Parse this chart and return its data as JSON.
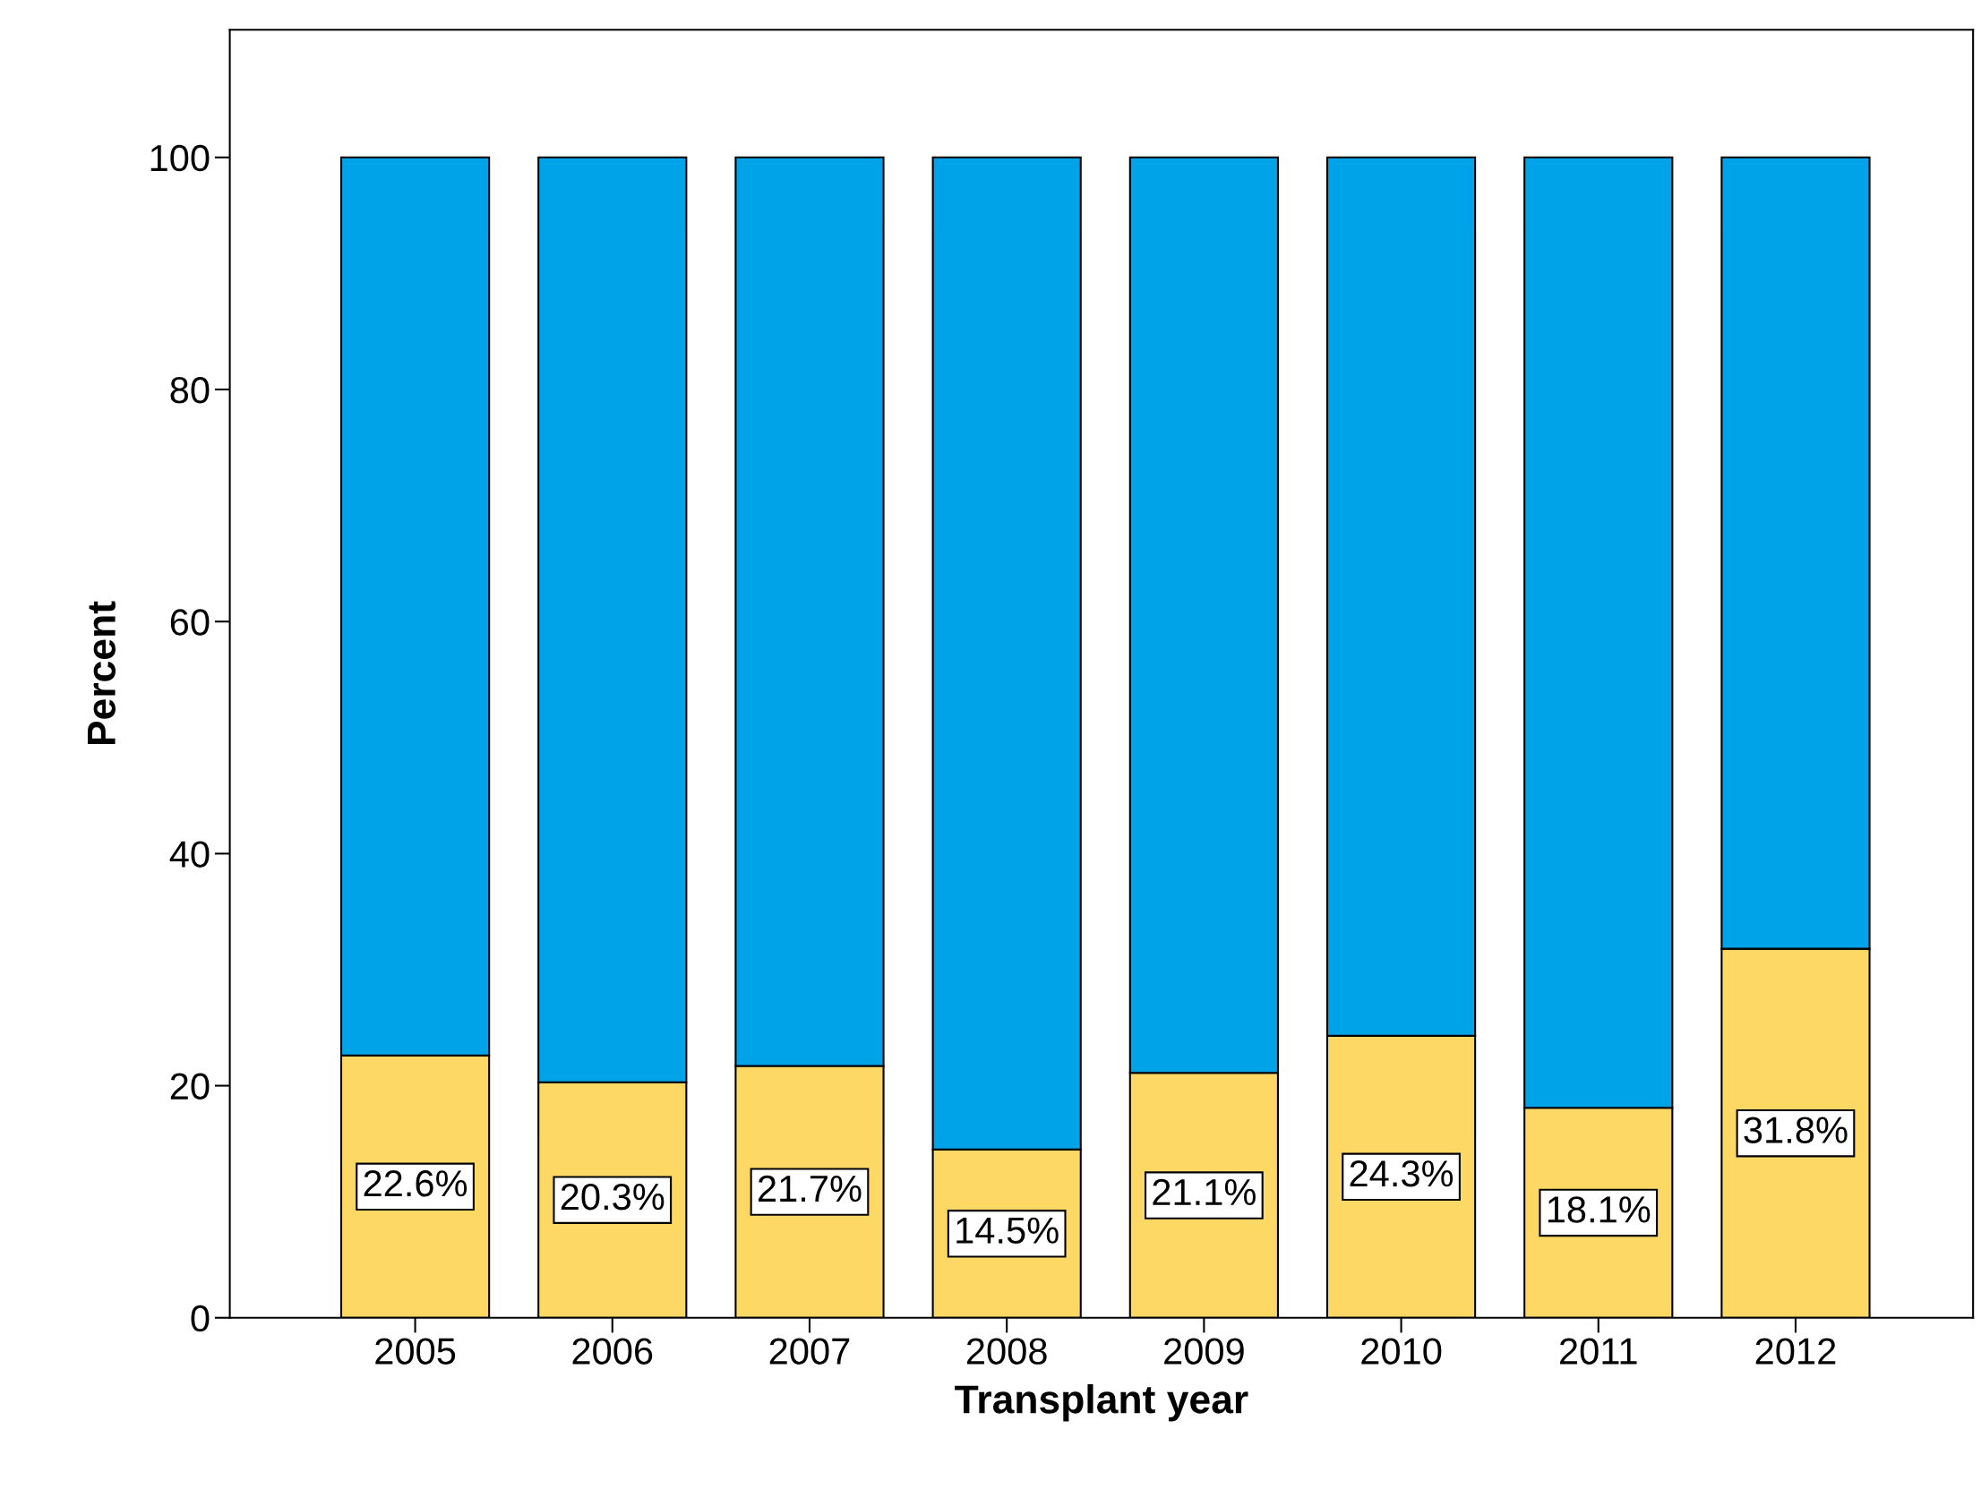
{
  "chart_data": {
    "type": "bar",
    "stacked": true,
    "xlabel": "Transplant year",
    "ylabel": "Percent",
    "categories": [
      "2005",
      "2006",
      "2007",
      "2008",
      "2009",
      "2010",
      "2011",
      "2012"
    ],
    "series": [
      {
        "color": "#fdd865",
        "values": [
          22.6,
          20.3,
          21.7,
          14.5,
          21.1,
          24.3,
          18.1,
          31.8
        ],
        "value_labels": [
          "22.6%",
          "20.3%",
          "21.7%",
          "14.5%",
          "21.1%",
          "24.3%",
          "18.1%",
          "31.8%"
        ]
      },
      {
        "color": "#00a2e8",
        "values": [
          77.4,
          79.7,
          78.3,
          85.5,
          78.9,
          75.7,
          81.9,
          68.2
        ]
      }
    ],
    "ylim": [
      0,
      111
    ],
    "yticks": [
      0,
      20,
      40,
      60,
      80,
      100
    ],
    "grid": false,
    "legend": false
  }
}
